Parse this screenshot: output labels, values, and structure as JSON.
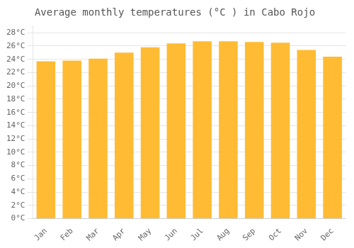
{
  "chart_data": {
    "type": "bar",
    "title": "Average monthly temperatures (°C ) in Cabo Rojo",
    "categories": [
      "Jan",
      "Feb",
      "Mar",
      "Apr",
      "May",
      "Jun",
      "Jul",
      "Aug",
      "Sep",
      "Oct",
      "Nov",
      "Dec"
    ],
    "values": [
      23.7,
      23.8,
      24.1,
      25.0,
      25.8,
      26.4,
      26.7,
      26.7,
      26.6,
      26.5,
      25.4,
      24.4
    ],
    "color": "#FFBB33",
    "ylim": [
      0,
      29
    ],
    "yticks": [
      {
        "value": 0,
        "label": "0°C"
      },
      {
        "value": 2,
        "label": "2°C"
      },
      {
        "value": 4,
        "label": "4°C"
      },
      {
        "value": 6,
        "label": "6°C"
      },
      {
        "value": 8,
        "label": "8°C"
      },
      {
        "value": 10,
        "label": "10°C"
      },
      {
        "value": 12,
        "label": "12°C"
      },
      {
        "value": 14,
        "label": "14°C"
      },
      {
        "value": 16,
        "label": "16°C"
      },
      {
        "value": 18,
        "label": "18°C"
      },
      {
        "value": 20,
        "label": "20°C"
      },
      {
        "value": 22,
        "label": "22°C"
      },
      {
        "value": 24,
        "label": "24°C"
      },
      {
        "value": 26,
        "label": "26°C"
      },
      {
        "value": 28,
        "label": "28°C"
      }
    ],
    "grid": true
  }
}
